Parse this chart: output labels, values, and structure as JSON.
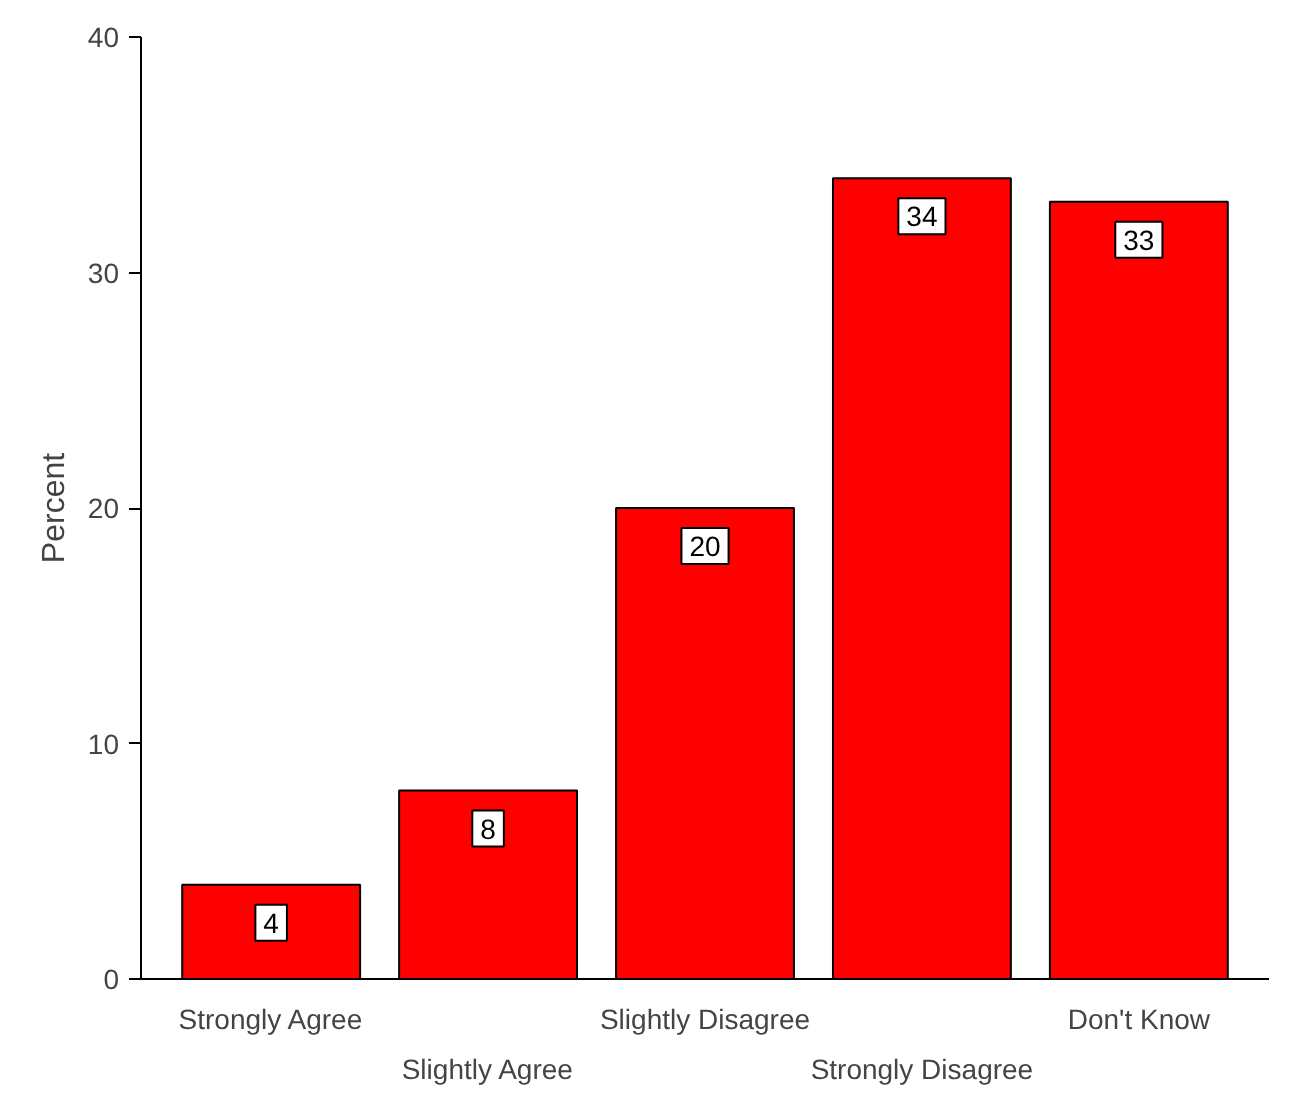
{
  "chart_data": {
    "type": "bar",
    "ylabel": "Percent",
    "categories": [
      "Strongly Agree",
      "Slightly Agree",
      "Slightly Disagree",
      "Strongly Disagree",
      "Don't Know"
    ],
    "values": [
      4,
      8,
      20,
      34,
      33
    ],
    "color": "#ff0000",
    "ylim": [
      0,
      40
    ],
    "yticks": [
      0,
      10,
      20,
      30,
      40
    ],
    "grid": false,
    "data_labels": true
  }
}
